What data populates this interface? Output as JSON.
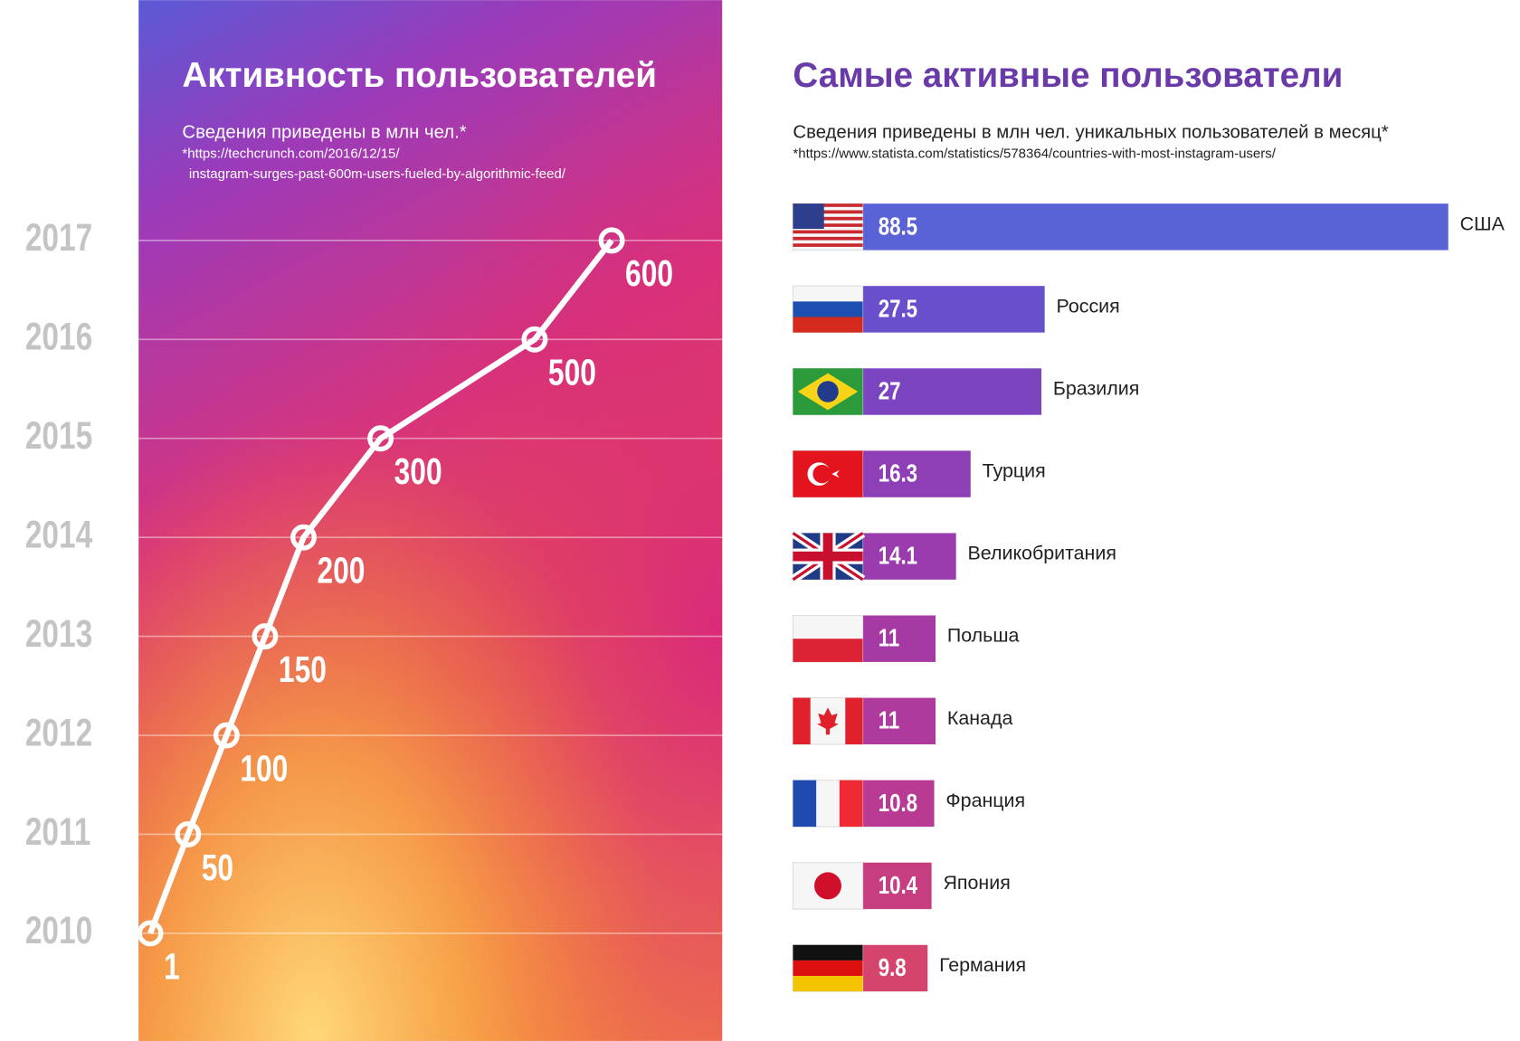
{
  "chart_data": [
    {
      "type": "line",
      "title": "Активность пользователей",
      "subtitle": "Сведения приведены в млн чел.*",
      "source": [
        "*https://techcrunch.com/2016/12/15/",
        "instagram-surges-past-600m-users-fueled-by-algorithmic-feed/"
      ],
      "categories": [
        "2010",
        "2011",
        "2012",
        "2013",
        "2014",
        "2015",
        "2016",
        "2017"
      ],
      "values": [
        1,
        50,
        100,
        150,
        200,
        300,
        500,
        600
      ],
      "color": "#ffffff",
      "grid": true
    },
    {
      "type": "hbar",
      "title": "Самые активные пользователи",
      "subtitle": "Сведения приведены в млн чел. уникальных пользователей в месяц*",
      "source": "*https://www.statista.com/statistics/578364/countries-with-most-instagram-users/",
      "categories": [
        "США",
        "Россия",
        "Бразилия",
        "Турция",
        "Великобритания",
        "Польша",
        "Канада",
        "Франция",
        "Япония",
        "Германия"
      ],
      "values": [
        88.5,
        27.5,
        27,
        16.3,
        14.1,
        11,
        11,
        10.8,
        10.4,
        9.8
      ],
      "colors": [
        "#5a63d6",
        "#6a4fcc",
        "#7b45c0",
        "#8e3fb5",
        "#9a3cad",
        "#a53aa4",
        "#ad3a9c",
        "#b83a92",
        "#c63d80",
        "#d4446c"
      ]
    }
  ]
}
